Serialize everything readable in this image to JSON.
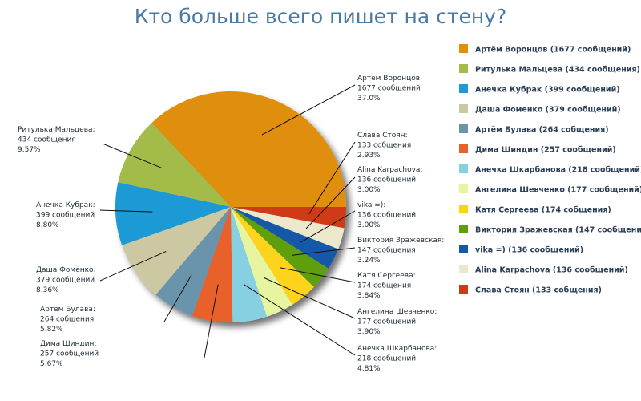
{
  "chart_data": {
    "type": "pie",
    "title": "Кто больше всего пишет на стену?",
    "legend_position": "right",
    "slices": [
      {
        "label": "Артём Воронцов:",
        "count_text": "1677 сообщений",
        "pct_text": "37.0%",
        "legend": "Артём Воронцов (1677 сообщений)",
        "value": 1677,
        "color": "#e08e0b"
      },
      {
        "label": "Ритулька Мальцева:",
        "count_text": "434 сообщения",
        "pct_text": "9.57%",
        "legend": "Ритулька Мальцева (434 сообщения)",
        "value": 434,
        "color": "#a2bb4a"
      },
      {
        "label": "Анечка Кубрак:",
        "count_text": "399 сообщений",
        "pct_text": "8.80%",
        "legend": "Анечка Кубрак (399 сообщений)",
        "value": 399,
        "color": "#1f9ad6"
      },
      {
        "label": "Даша Фоменко:",
        "count_text": "379 сообщений",
        "pct_text": "8.36%",
        "legend": "Даша Фоменко (379 сообщений)",
        "value": 379,
        "color": "#cbc8a2"
      },
      {
        "label": "Артём Булава:",
        "count_text": "264 собщения",
        "pct_text": "5.82%",
        "legend": "Артём Булава (264 собщения)",
        "value": 264,
        "color": "#6a93ac"
      },
      {
        "label": "Дима Шиндин:",
        "count_text": "257 сообщений",
        "pct_text": "5.67%",
        "legend": "Дима Шиндин (257 сообщений)",
        "value": 257,
        "color": "#e8612c"
      },
      {
        "label": "Анечка Шкарбанова:",
        "count_text": "218 сообщений",
        "pct_text": "4.81%",
        "legend": "Анечка Шкарбанова (218 сообщений)",
        "value": 218,
        "color": "#86d0e2"
      },
      {
        "label": "Ангелина Шевченко:",
        "count_text": "177 сообщений",
        "pct_text": "3.90%",
        "legend": "Ангелина Шевченко (177 сообщений)",
        "value": 177,
        "color": "#e8f5a0"
      },
      {
        "label": "Катя Сергеева:",
        "count_text": "174 собщения",
        "pct_text": "3.84%",
        "legend": "Катя Сергеева (174 собщения)",
        "value": 174,
        "color": "#fdd31a"
      },
      {
        "label": "Виктория Зражевская:",
        "count_text": "147 сообщения",
        "pct_text": "3.24%",
        "legend": "Виктория Зражевская (147 сообщения)",
        "value": 147,
        "color": "#5f9e0c"
      },
      {
        "label": "vika =):",
        "count_text": "136 сообщений",
        "pct_text": "3.00%",
        "legend": "vika =) (136 сообщений)",
        "value": 136,
        "color": "#1259a8"
      },
      {
        "label": "Alina Karpachova:",
        "count_text": "136 сообщений",
        "pct_text": "3.00%",
        "legend": "Alina Karpachova (136 сообщений)",
        "value": 136,
        "color": "#ede8cc"
      },
      {
        "label": "Слава Стоян:",
        "count_text": "133 собщения",
        "pct_text": "2.93%",
        "legend": "Слава Стоян (133 собщения)",
        "value": 133,
        "color": "#cf3a12"
      }
    ]
  }
}
